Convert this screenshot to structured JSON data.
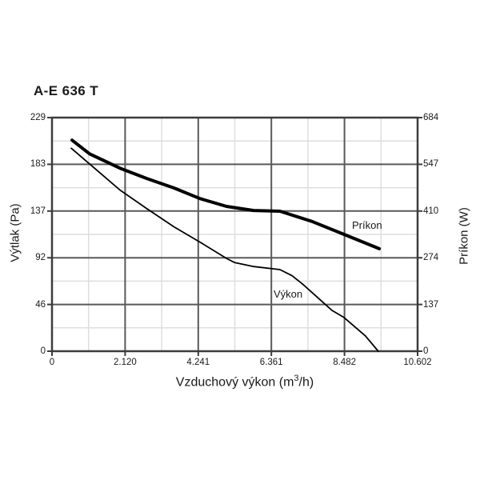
{
  "chart_data": {
    "type": "line",
    "title": "A-E 636 T",
    "xlabel": "Vzduchový výkon (m3/h)",
    "xlabel_parts": [
      "Vzduchový výkon (m",
      "3",
      "/h)"
    ],
    "ylabel_left": "Výtlak (Pa)",
    "ylabel_right": "Príkon (W)",
    "xlim": [
      0,
      10.602
    ],
    "ylim_left": [
      0,
      229
    ],
    "ylim_right": [
      0,
      684
    ],
    "x_tick_labels": [
      "0",
      "2.120",
      "4.241",
      "6.361",
      "8.482",
      "10.602"
    ],
    "y_tick_labels_left": [
      "0",
      "46",
      "92",
      "137",
      "183",
      "229"
    ],
    "y_tick_labels_right": [
      "0",
      "137",
      "274",
      "410",
      "547",
      "684"
    ],
    "grid": {
      "major_divisions": 5,
      "minor_per_major": 2,
      "grid_on": true
    },
    "legend_position": "labels-next-to-curves",
    "series": [
      {
        "name": "Príkon",
        "axis": "right",
        "unit": "W",
        "line_width": "thick",
        "points": [
          [
            0.58,
            618
          ],
          [
            1.09,
            578
          ],
          [
            1.97,
            536
          ],
          [
            2.74,
            506
          ],
          [
            3.53,
            478
          ],
          [
            4.29,
            447
          ],
          [
            5.06,
            424
          ],
          [
            5.85,
            412
          ],
          [
            6.61,
            410
          ],
          [
            7.54,
            380
          ],
          [
            8.47,
            342
          ],
          [
            9.49,
            300
          ]
        ]
      },
      {
        "name": "Výkon",
        "axis": "left",
        "unit": "Pa",
        "line_width": "thin",
        "points": [
          [
            0.56,
            199
          ],
          [
            1.97,
            158
          ],
          [
            2.74,
            140
          ],
          [
            3.53,
            122
          ],
          [
            4.29,
            107
          ],
          [
            5.06,
            91
          ],
          [
            5.29,
            87
          ],
          [
            5.85,
            83
          ],
          [
            6.61,
            80
          ],
          [
            6.96,
            74
          ],
          [
            7.26,
            66
          ],
          [
            7.59,
            56
          ],
          [
            8.12,
            40
          ],
          [
            8.47,
            33
          ],
          [
            9.09,
            15
          ],
          [
            9.46,
            0
          ]
        ]
      }
    ]
  },
  "colors": {
    "background": "#ffffff",
    "border": "#3c3c3c",
    "grid_major": "#595959",
    "grid_minor": "#dedede",
    "curve": "#000000",
    "text": "#1a1a1a"
  }
}
